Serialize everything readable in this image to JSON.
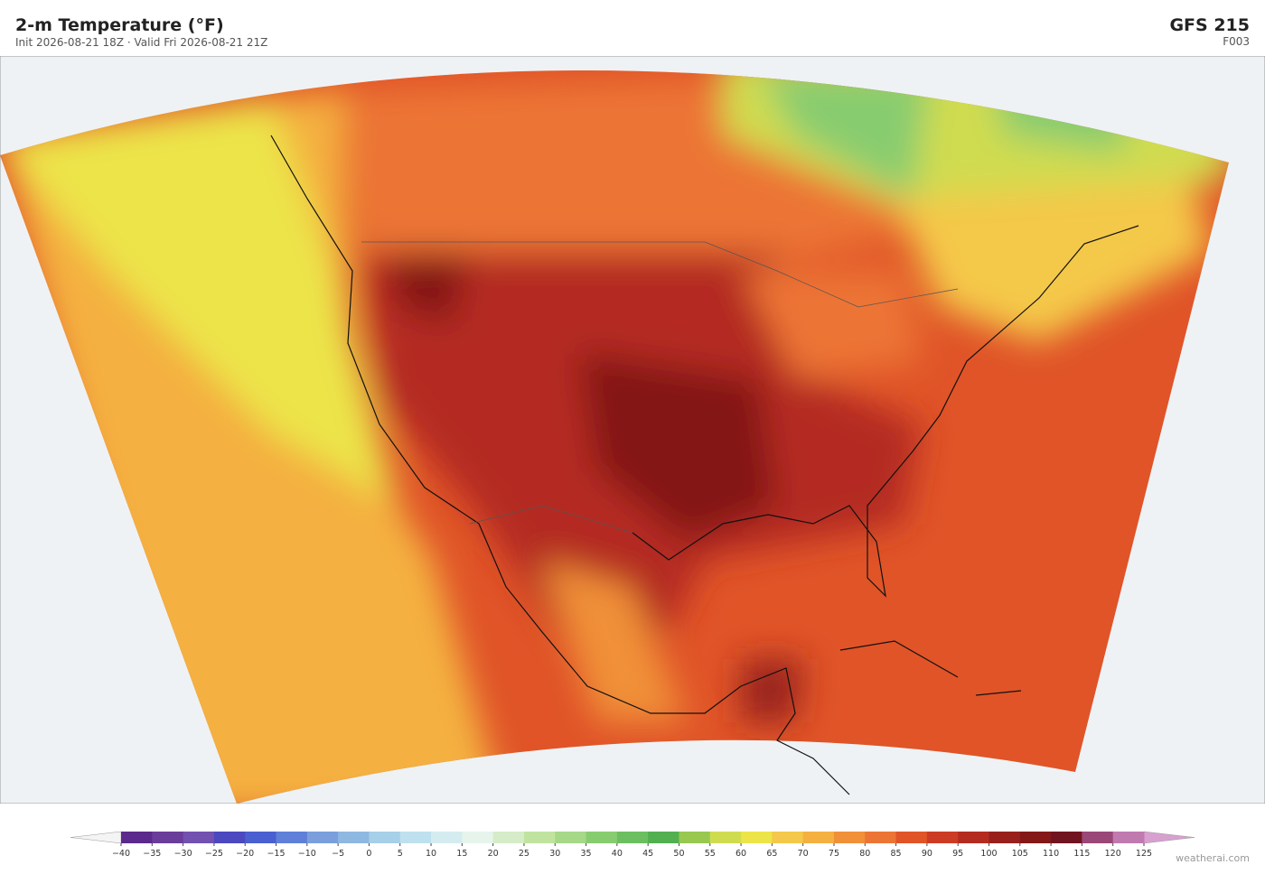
{
  "header": {
    "title": "2-m Temperature  (°F)",
    "subtitle": "Init 2026-08-21 18Z  ·  Valid Fri 2026-08-21 21Z",
    "model": "GFS  215",
    "forecast_hour": "F003"
  },
  "colorbar": {
    "range": [
      -40,
      125
    ],
    "ticks": [
      {
        "value": -40,
        "label": "−40"
      },
      {
        "value": -35,
        "label": "−35"
      },
      {
        "value": -30,
        "label": "−30"
      },
      {
        "value": -25,
        "label": "−25"
      },
      {
        "value": -20,
        "label": "−20"
      },
      {
        "value": -15,
        "label": "−15"
      },
      {
        "value": -10,
        "label": "−10"
      },
      {
        "value": -5,
        "label": "−5"
      },
      0,
      5,
      10,
      15,
      20,
      25,
      30,
      35,
      40,
      45,
      50,
      55,
      60,
      65,
      70,
      75,
      80,
      85,
      90,
      95,
      100,
      105,
      110,
      115,
      120,
      125
    ],
    "colors": [
      "#5b2a8c",
      "#6a3d9a",
      "#7251b0",
      "#4b48c0",
      "#4a5fd0",
      "#5f7fd8",
      "#7a9fdc",
      "#8fb8e0",
      "#a6cfe8",
      "#bfe0ee",
      "#d4ecf0",
      "#e6f4ec",
      "#d6ecc8",
      "#c0e4a0",
      "#a6d888",
      "#88cc70",
      "#6cbf60",
      "#52b050",
      "#98c850",
      "#d0dc50",
      "#ece448",
      "#f4c84a",
      "#f4b040",
      "#f09038",
      "#ec7434",
      "#e05428",
      "#cc3c24",
      "#b42c20",
      "#98201c",
      "#841818",
      "#701420",
      "#9a4878",
      "#c07ab0"
    ],
    "under_color": "#f4f4f4",
    "over_color": "#d8a0d0"
  },
  "footer": {
    "credit": "weatherai.com"
  }
}
